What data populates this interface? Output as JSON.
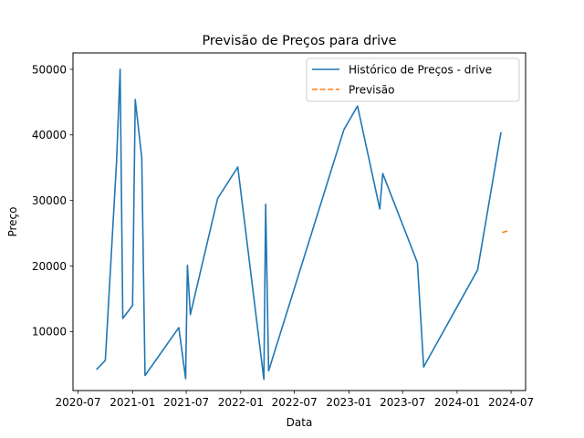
{
  "chart_data": {
    "type": "line",
    "title": "Previsão de Preços para drive",
    "xlabel": "Data",
    "ylabel": "Preço",
    "xlim": [
      "2020-06-14",
      "2024-08-19"
    ],
    "ylim": [
      1000,
      52500
    ],
    "x_ticks": [
      {
        "date": "2020-07-01",
        "label": "2020-07"
      },
      {
        "date": "2021-01-01",
        "label": "2021-01"
      },
      {
        "date": "2021-07-01",
        "label": "2021-07"
      },
      {
        "date": "2022-01-01",
        "label": "2022-01"
      },
      {
        "date": "2022-07-01",
        "label": "2022-07"
      },
      {
        "date": "2023-01-01",
        "label": "2023-01"
      },
      {
        "date": "2023-07-01",
        "label": "2023-07"
      },
      {
        "date": "2024-01-01",
        "label": "2024-01"
      },
      {
        "date": "2024-07-01",
        "label": "2024-07"
      }
    ],
    "y_ticks": [
      {
        "value": 10000,
        "label": "10000"
      },
      {
        "value": 20000,
        "label": "20000"
      },
      {
        "value": 30000,
        "label": "30000"
      },
      {
        "value": 40000,
        "label": "40000"
      },
      {
        "value": 50000,
        "label": "50000"
      }
    ],
    "grid": false,
    "legend_position": "top-right",
    "series": [
      {
        "name": "Histórico de Preços - drive",
        "color": "#1f77b4",
        "style": "solid",
        "points": [
          {
            "date": "2020-09-01",
            "value": 4200
          },
          {
            "date": "2020-10-01",
            "value": 5600
          },
          {
            "date": "2020-11-08",
            "value": 36000
          },
          {
            "date": "2020-11-20",
            "value": 50000
          },
          {
            "date": "2020-11-29",
            "value": 12000
          },
          {
            "date": "2021-01-01",
            "value": 14000
          },
          {
            "date": "2021-01-10",
            "value": 45400
          },
          {
            "date": "2021-02-01",
            "value": 36500
          },
          {
            "date": "2021-02-12",
            "value": 3300
          },
          {
            "date": "2021-06-06",
            "value": 10600
          },
          {
            "date": "2021-06-29",
            "value": 2800
          },
          {
            "date": "2021-07-05",
            "value": 20100
          },
          {
            "date": "2021-07-15",
            "value": 12600
          },
          {
            "date": "2021-10-15",
            "value": 30300
          },
          {
            "date": "2021-12-22",
            "value": 35100
          },
          {
            "date": "2022-03-20",
            "value": 2700
          },
          {
            "date": "2022-03-26",
            "value": 29400
          },
          {
            "date": "2022-04-05",
            "value": 4000
          },
          {
            "date": "2022-12-15",
            "value": 40800
          },
          {
            "date": "2023-01-30",
            "value": 44400
          },
          {
            "date": "2023-04-15",
            "value": 28700
          },
          {
            "date": "2023-04-25",
            "value": 34100
          },
          {
            "date": "2023-08-20",
            "value": 20500
          },
          {
            "date": "2023-09-10",
            "value": 4600
          },
          {
            "date": "2024-03-10",
            "value": 19400
          },
          {
            "date": "2024-05-28",
            "value": 40400
          }
        ]
      },
      {
        "name": "Previsão",
        "color": "#ff7f0e",
        "style": "dashed",
        "points": [
          {
            "date": "2024-06-01",
            "value": 25100
          },
          {
            "date": "2024-06-22",
            "value": 25400
          }
        ]
      }
    ]
  }
}
